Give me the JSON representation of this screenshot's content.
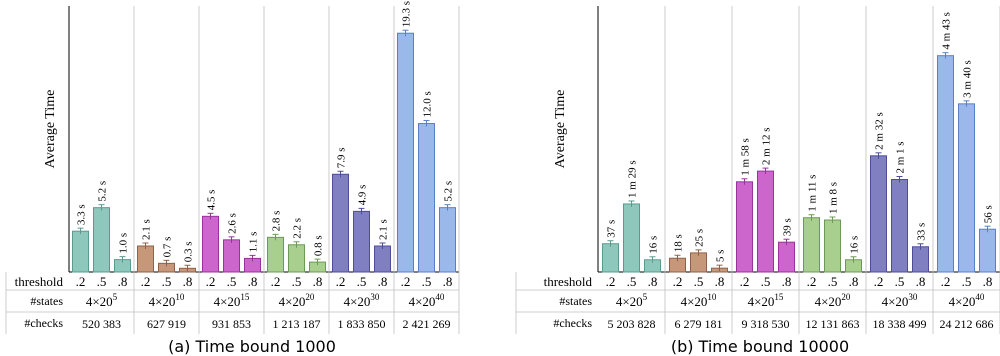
{
  "panels": [
    {
      "caption": "(a) Time bound 1000",
      "ylabel": "Average Time",
      "row_labels": [
        "threshold",
        "#states",
        "#checks"
      ],
      "thresholds": [
        ".2",
        ".5",
        ".8"
      ],
      "groups": [
        {
          "states": "4×20",
          "exp": "5",
          "checks": "520 383",
          "color": "#8ec8bd",
          "stroke": "#5a9a8f",
          "values": [
            3.3,
            5.2,
            1.0
          ],
          "labels": [
            "3.3 s",
            "5.2 s",
            "1.0 s"
          ]
        },
        {
          "states": "4×20",
          "exp": "10",
          "checks": "627 919",
          "color": "#c7977a",
          "stroke": "#8e6248",
          "values": [
            2.1,
            0.7,
            0.3
          ],
          "labels": [
            "2.1 s",
            "0.7 s",
            "0.3 s"
          ]
        },
        {
          "states": "4×20",
          "exp": "15",
          "checks": "931 853",
          "color": "#cc66cc",
          "stroke": "#993399",
          "values": [
            4.5,
            2.6,
            1.1
          ],
          "labels": [
            "4.5 s",
            "2.6 s",
            "1.1 s"
          ]
        },
        {
          "states": "4×20",
          "exp": "20",
          "checks": "1 213 187",
          "color": "#a8cf8e",
          "stroke": "#6c9a54",
          "values": [
            2.8,
            2.2,
            0.8
          ],
          "labels": [
            "2.8 s",
            "2.2 s",
            "0.8 s"
          ]
        },
        {
          "states": "4×20",
          "exp": "30",
          "checks": "1 833 850",
          "color": "#7f7fc2",
          "stroke": "#4d4d99",
          "values": [
            7.9,
            4.9,
            2.1
          ],
          "labels": [
            "7.9 s",
            "4.9 s",
            "2.1 s"
          ]
        },
        {
          "states": "4×20",
          "exp": "40",
          "checks": "2 421 269",
          "color": "#9ab8ea",
          "stroke": "#5a7fc4",
          "values": [
            19.3,
            12.0,
            5.2
          ],
          "labels": [
            "19.3 s",
            "12.0 s",
            "5.2 s"
          ]
        }
      ]
    },
    {
      "caption": "(b) Time bound 10000",
      "ylabel": "Average Time",
      "row_labels": [
        "threshold",
        "#states",
        "#checks"
      ],
      "thresholds": [
        ".2",
        ".5",
        ".8"
      ],
      "groups": [
        {
          "states": "4×20",
          "exp": "5",
          "checks": "5 203 828",
          "color": "#8ec8bd",
          "stroke": "#5a9a8f",
          "values": [
            37,
            89,
            16
          ],
          "labels": [
            "37 s",
            "1 m 29 s",
            "16 s"
          ]
        },
        {
          "states": "4×20",
          "exp": "10",
          "checks": "6 279 181",
          "color": "#c7977a",
          "stroke": "#8e6248",
          "values": [
            18,
            25,
            5
          ],
          "labels": [
            "18 s",
            "25 s",
            "5 s"
          ]
        },
        {
          "states": "4×20",
          "exp": "15",
          "checks": "9 318 530",
          "color": "#cc66cc",
          "stroke": "#993399",
          "values": [
            118,
            132,
            39
          ],
          "labels": [
            "1 m 58 s",
            "2 m 12 s",
            "39 s"
          ]
        },
        {
          "states": "4×20",
          "exp": "20",
          "checks": "12 131 863",
          "color": "#a8cf8e",
          "stroke": "#6c9a54",
          "values": [
            71,
            68,
            16
          ],
          "labels": [
            "1 m 11 s",
            "1 m 8 s",
            "16 s"
          ]
        },
        {
          "states": "4×20",
          "exp": "30",
          "checks": "18 338 499",
          "color": "#7f7fc2",
          "stroke": "#4d4d99",
          "values": [
            152,
            121,
            33
          ],
          "labels": [
            "2 m 32 s",
            "2 m 1 s",
            "33 s"
          ]
        },
        {
          "states": "4×20",
          "exp": "40",
          "checks": "24 212 686",
          "color": "#9ab8ea",
          "stroke": "#5a7fc4",
          "values": [
            283,
            220,
            56
          ],
          "labels": [
            "4 m 43 s",
            "3 m 40 s",
            "56 s"
          ]
        }
      ]
    }
  ],
  "chart_data": [
    {
      "type": "bar",
      "title": "(a) Time bound 1000",
      "ylabel": "Average Time",
      "xlabel": "",
      "categories": [
        "4×20^5",
        "4×20^10",
        "4×20^15",
        "4×20^20",
        "4×20^30",
        "4×20^40"
      ],
      "checks": [
        "520 383",
        "627 919",
        "931 853",
        "1 213 187",
        "1 833 850",
        "2 421 269"
      ],
      "series": [
        {
          "name": ".2",
          "values": [
            3.3,
            2.1,
            4.5,
            2.8,
            7.9,
            19.3
          ]
        },
        {
          "name": ".5",
          "values": [
            5.2,
            0.7,
            2.6,
            2.2,
            4.9,
            12.0
          ]
        },
        {
          "name": ".8",
          "values": [
            1.0,
            0.3,
            1.1,
            0.8,
            2.1,
            5.2
          ]
        }
      ],
      "ylim": [
        0,
        21.5
      ],
      "grid": false
    },
    {
      "type": "bar",
      "title": "(b) Time bound 10000",
      "ylabel": "Average Time",
      "xlabel": "",
      "categories": [
        "4×20^5",
        "4×20^10",
        "4×20^15",
        "4×20^20",
        "4×20^30",
        "4×20^40"
      ],
      "checks": [
        "5 203 828",
        "6 279 181",
        "9 318 530",
        "12 131 863",
        "18 338 499",
        "24 212 686"
      ],
      "series": [
        {
          "name": ".2",
          "values": [
            37,
            18,
            118,
            71,
            152,
            283
          ]
        },
        {
          "name": ".5",
          "values": [
            89,
            25,
            132,
            68,
            121,
            220
          ]
        },
        {
          "name": ".8",
          "values": [
            16,
            5,
            39,
            16,
            33,
            56
          ]
        }
      ],
      "ylim": [
        0,
        348
      ],
      "grid": false
    }
  ]
}
